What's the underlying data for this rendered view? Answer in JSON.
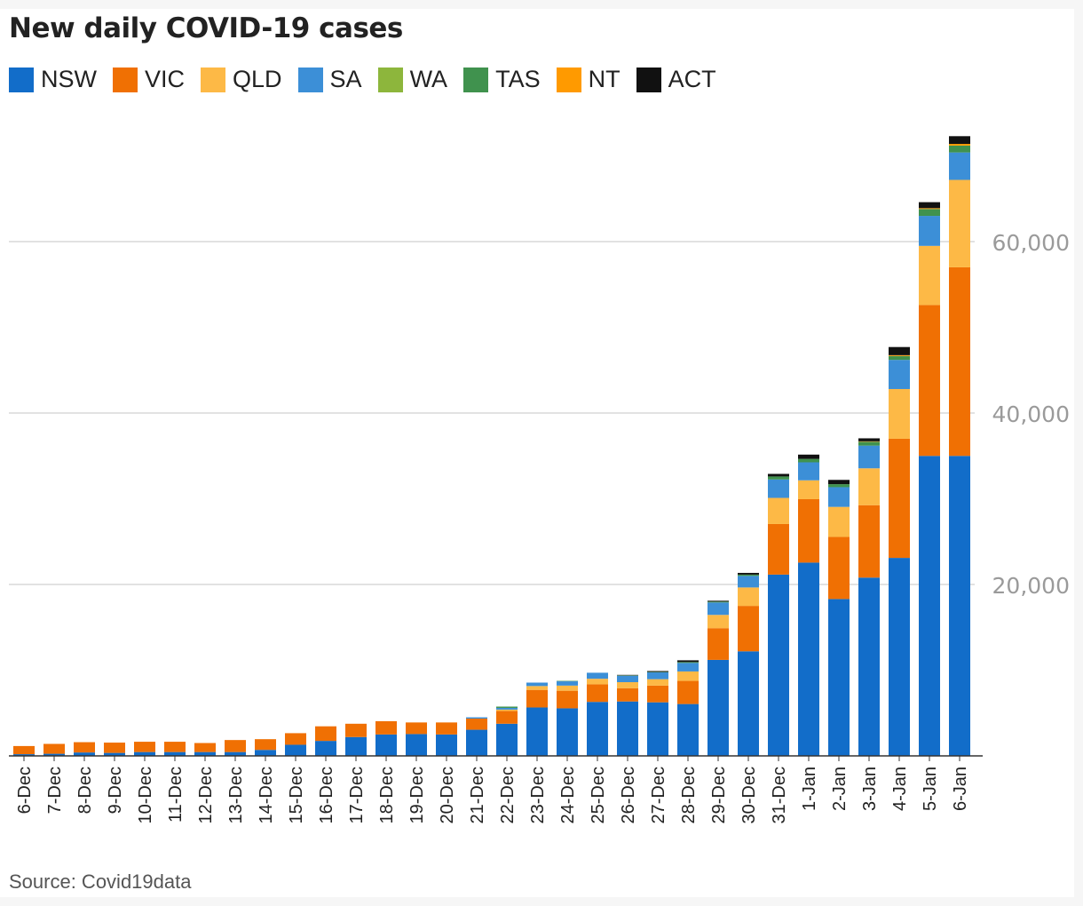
{
  "chart_data": {
    "type": "bar",
    "stacked": true,
    "title": "New daily COVID-19 cases",
    "xlabel": "",
    "ylabel": "",
    "ylim": [
      0,
      72000
    ],
    "yticks": [
      20000,
      40000,
      60000
    ],
    "ytick_labels": [
      "20,000",
      "40,000",
      "60,000"
    ],
    "legend_position": "top-left",
    "grid": true,
    "categories": [
      "6-Dec",
      "7-Dec",
      "8-Dec",
      "9-Dec",
      "10-Dec",
      "11-Dec",
      "12-Dec",
      "13-Dec",
      "14-Dec",
      "15-Dec",
      "16-Dec",
      "17-Dec",
      "18-Dec",
      "19-Dec",
      "20-Dec",
      "21-Dec",
      "22-Dec",
      "23-Dec",
      "24-Dec",
      "25-Dec",
      "26-Dec",
      "27-Dec",
      "28-Dec",
      "29-Dec",
      "30-Dec",
      "31-Dec",
      "1-Jan",
      "2-Jan",
      "3-Jan",
      "4-Jan",
      "5-Jan",
      "6-Jan"
    ],
    "series": [
      {
        "name": "NSW",
        "color": "#126dc9",
        "values": [
          200,
          250,
          400,
          350,
          450,
          450,
          450,
          450,
          700,
          1300,
          1750,
          2200,
          2500,
          2550,
          2500,
          3050,
          3750,
          5650,
          5550,
          6300,
          6350,
          6250,
          6050,
          11200,
          12200,
          21150,
          22550,
          18300,
          20800,
          23100,
          35000,
          35000
        ]
      },
      {
        "name": "VIC",
        "color": "#f07003",
        "values": [
          950,
          1150,
          1200,
          1200,
          1200,
          1200,
          1050,
          1400,
          1250,
          1350,
          1700,
          1550,
          1550,
          1350,
          1400,
          1300,
          1500,
          2050,
          2050,
          2050,
          1550,
          1950,
          2700,
          3700,
          5300,
          5900,
          7400,
          7250,
          8450,
          13900,
          17600,
          22000
        ]
      },
      {
        "name": "QLD",
        "color": "#fdb946",
        "values": [
          0,
          0,
          0,
          0,
          0,
          0,
          0,
          0,
          0,
          0,
          0,
          0,
          0,
          0,
          0,
          0,
          150,
          450,
          600,
          650,
          700,
          750,
          1100,
          1550,
          2150,
          3050,
          2200,
          3500,
          4300,
          5800,
          6900,
          10200
        ]
      },
      {
        "name": "SA",
        "color": "#3c8fd7",
        "values": [
          0,
          0,
          0,
          0,
          0,
          0,
          0,
          0,
          0,
          0,
          0,
          0,
          0,
          0,
          0,
          150,
          200,
          400,
          500,
          700,
          750,
          800,
          1000,
          1450,
          1350,
          2150,
          2100,
          2300,
          2650,
          3400,
          3500,
          3200
        ]
      },
      {
        "name": "WA",
        "color": "#8db63c",
        "values": [
          0,
          0,
          0,
          0,
          0,
          0,
          0,
          0,
          0,
          0,
          0,
          0,
          0,
          0,
          0,
          0,
          0,
          0,
          0,
          0,
          0,
          0,
          0,
          0,
          0,
          0,
          0,
          0,
          0,
          0,
          0,
          0
        ]
      },
      {
        "name": "TAS",
        "color": "#40924e",
        "values": [
          0,
          0,
          0,
          0,
          0,
          0,
          0,
          0,
          0,
          0,
          0,
          0,
          0,
          0,
          0,
          0,
          150,
          0,
          50,
          0,
          50,
          50,
          100,
          100,
          150,
          350,
          400,
          350,
          450,
          450,
          800,
          800
        ]
      },
      {
        "name": "NT",
        "color": "#ff9a00",
        "values": [
          0,
          0,
          0,
          0,
          0,
          0,
          0,
          0,
          0,
          0,
          0,
          0,
          0,
          0,
          0,
          0,
          0,
          0,
          0,
          0,
          0,
          0,
          0,
          0,
          0,
          0,
          0,
          0,
          50,
          100,
          100,
          200
        ]
      },
      {
        "name": "ACT",
        "color": "#111111",
        "values": [
          0,
          0,
          0,
          0,
          0,
          0,
          0,
          0,
          0,
          0,
          0,
          0,
          0,
          0,
          0,
          0,
          0,
          0,
          0,
          0,
          50,
          100,
          200,
          100,
          200,
          300,
          500,
          500,
          350,
          950,
          700,
          900
        ]
      }
    ]
  },
  "source": "Source: Covid19data"
}
